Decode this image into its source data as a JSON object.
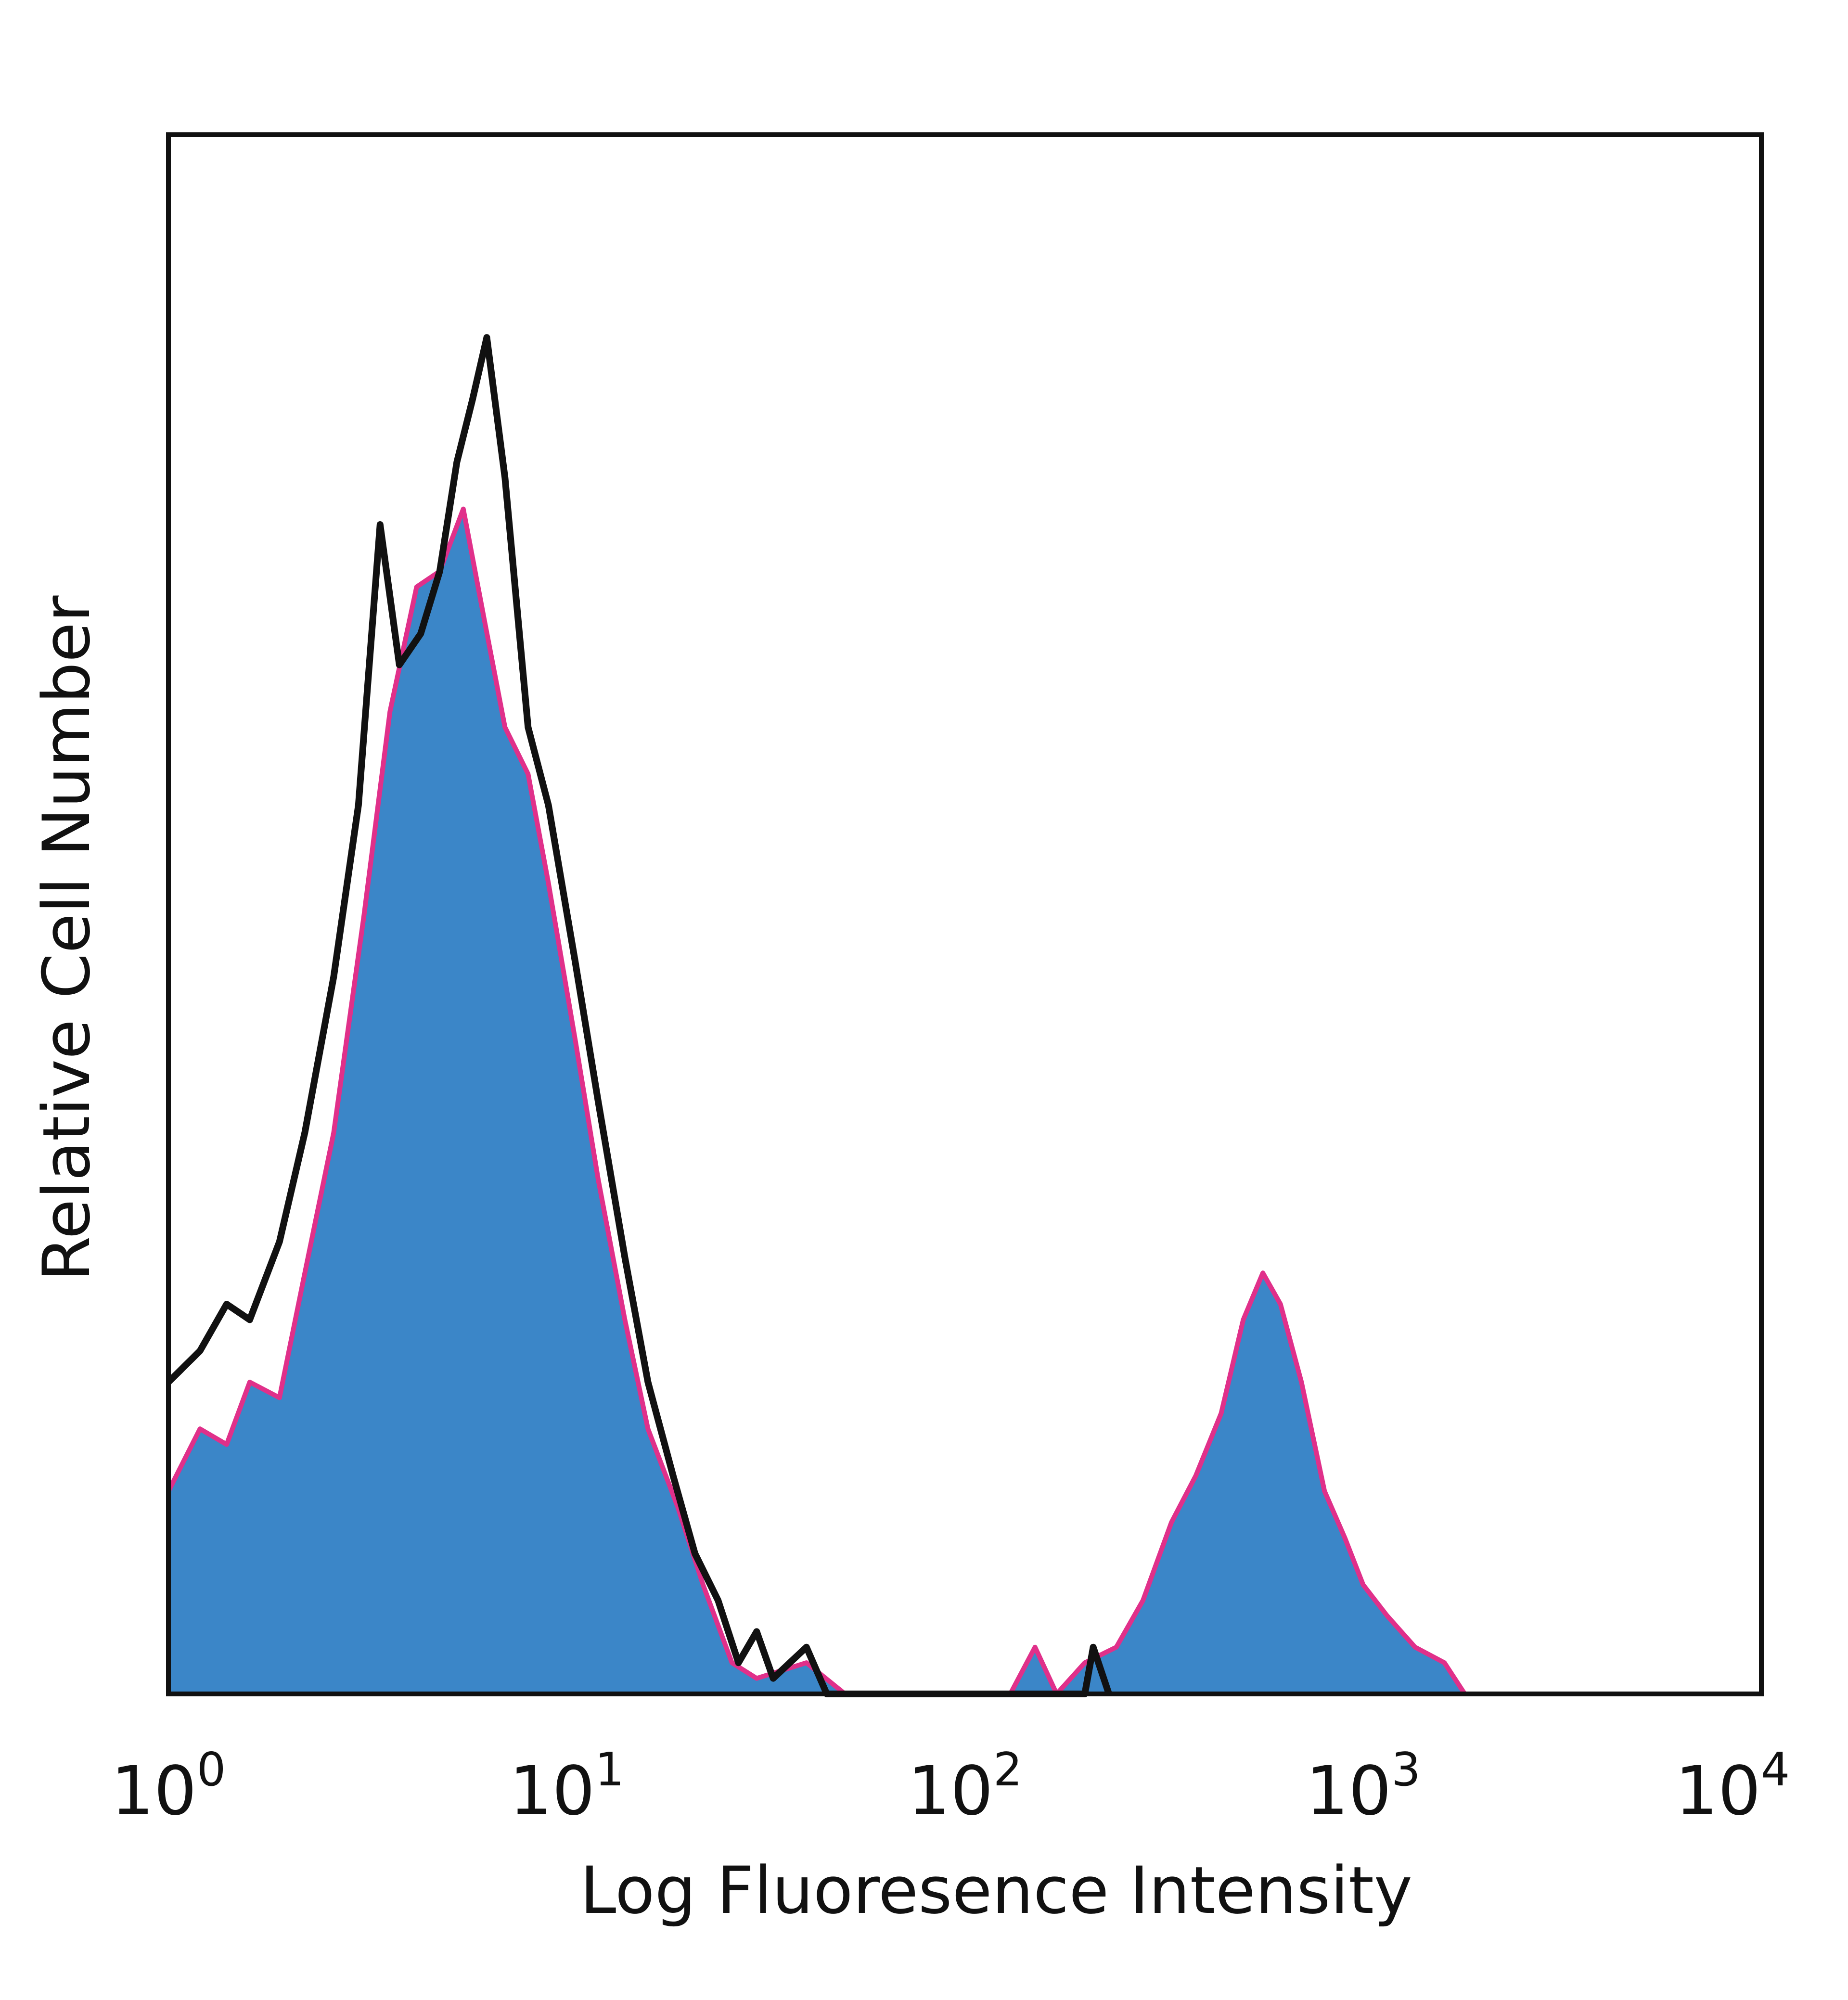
{
  "chart_data": {
    "type": "histogram",
    "title": "",
    "xlabel": "Log Fluoresence Intensity",
    "ylabel": "Relative Cell Number",
    "x_scale": "log",
    "xlim": [
      1,
      10000
    ],
    "ylim": [
      0,
      1
    ],
    "grid": false,
    "legend": "none",
    "x_ticks": [
      {
        "base": "10",
        "exp": "0",
        "value": 1
      },
      {
        "base": "10",
        "exp": "1",
        "value": 10
      },
      {
        "base": "10",
        "exp": "2",
        "value": 100
      },
      {
        "base": "10",
        "exp": "3",
        "value": 1000
      },
      {
        "base": "10",
        "exp": "4",
        "value": 10000
      }
    ],
    "series": [
      {
        "style": "filled",
        "color": "#3b86c8",
        "edge_color": "#e0308a",
        "points": [
          [
            1.0,
            0.13
          ],
          [
            1.2,
            0.17
          ],
          [
            1.4,
            0.16
          ],
          [
            1.6,
            0.2
          ],
          [
            1.9,
            0.19
          ],
          [
            2.2,
            0.27
          ],
          [
            2.6,
            0.36
          ],
          [
            3.1,
            0.5
          ],
          [
            3.6,
            0.63
          ],
          [
            4.2,
            0.71
          ],
          [
            4.8,
            0.72
          ],
          [
            5.5,
            0.76
          ],
          [
            6.2,
            0.69
          ],
          [
            7.0,
            0.62
          ],
          [
            8.0,
            0.59
          ],
          [
            9.0,
            0.52
          ],
          [
            10.5,
            0.42
          ],
          [
            12.0,
            0.33
          ],
          [
            14.0,
            0.24
          ],
          [
            16.0,
            0.17
          ],
          [
            19.0,
            0.12
          ],
          [
            22.0,
            0.07
          ],
          [
            26.0,
            0.02
          ],
          [
            30.0,
            0.01
          ],
          [
            40.0,
            0.02
          ],
          [
            50.0,
            0.0
          ],
          [
            130.0,
            0.0
          ],
          [
            150.0,
            0.03
          ],
          [
            170.0,
            0.0
          ],
          [
            200.0,
            0.02
          ],
          [
            240.0,
            0.03
          ],
          [
            280.0,
            0.06
          ],
          [
            330.0,
            0.11
          ],
          [
            380.0,
            0.14
          ],
          [
            440.0,
            0.18
          ],
          [
            500.0,
            0.24
          ],
          [
            560.0,
            0.27
          ],
          [
            620.0,
            0.25
          ],
          [
            700.0,
            0.2
          ],
          [
            800.0,
            0.13
          ],
          [
            900.0,
            0.1
          ],
          [
            1000.0,
            0.07
          ],
          [
            1150.0,
            0.05
          ],
          [
            1350.0,
            0.03
          ],
          [
            1600.0,
            0.02
          ],
          [
            1800.0,
            0.0
          ]
        ]
      },
      {
        "style": "outline",
        "color": "#111111",
        "points": [
          [
            1.0,
            0.2
          ],
          [
            1.2,
            0.22
          ],
          [
            1.4,
            0.25
          ],
          [
            1.6,
            0.24
          ],
          [
            1.9,
            0.29
          ],
          [
            2.2,
            0.36
          ],
          [
            2.6,
            0.46
          ],
          [
            3.0,
            0.57
          ],
          [
            3.4,
            0.75
          ],
          [
            3.8,
            0.66
          ],
          [
            4.3,
            0.68
          ],
          [
            4.8,
            0.72
          ],
          [
            5.3,
            0.79
          ],
          [
            5.8,
            0.83
          ],
          [
            6.3,
            0.87
          ],
          [
            7.0,
            0.78
          ],
          [
            8.0,
            0.62
          ],
          [
            9.0,
            0.57
          ],
          [
            10.5,
            0.47
          ],
          [
            12.0,
            0.38
          ],
          [
            14.0,
            0.28
          ],
          [
            16.0,
            0.2
          ],
          [
            18.5,
            0.14
          ],
          [
            21.0,
            0.09
          ],
          [
            24.0,
            0.06
          ],
          [
            27.0,
            0.02
          ],
          [
            30.0,
            0.04
          ],
          [
            33.0,
            0.01
          ],
          [
            40.0,
            0.03
          ],
          [
            45.0,
            0.0
          ],
          [
            200.0,
            0.0
          ],
          [
            210.0,
            0.03
          ],
          [
            230.0,
            0.0
          ]
        ]
      }
    ]
  }
}
